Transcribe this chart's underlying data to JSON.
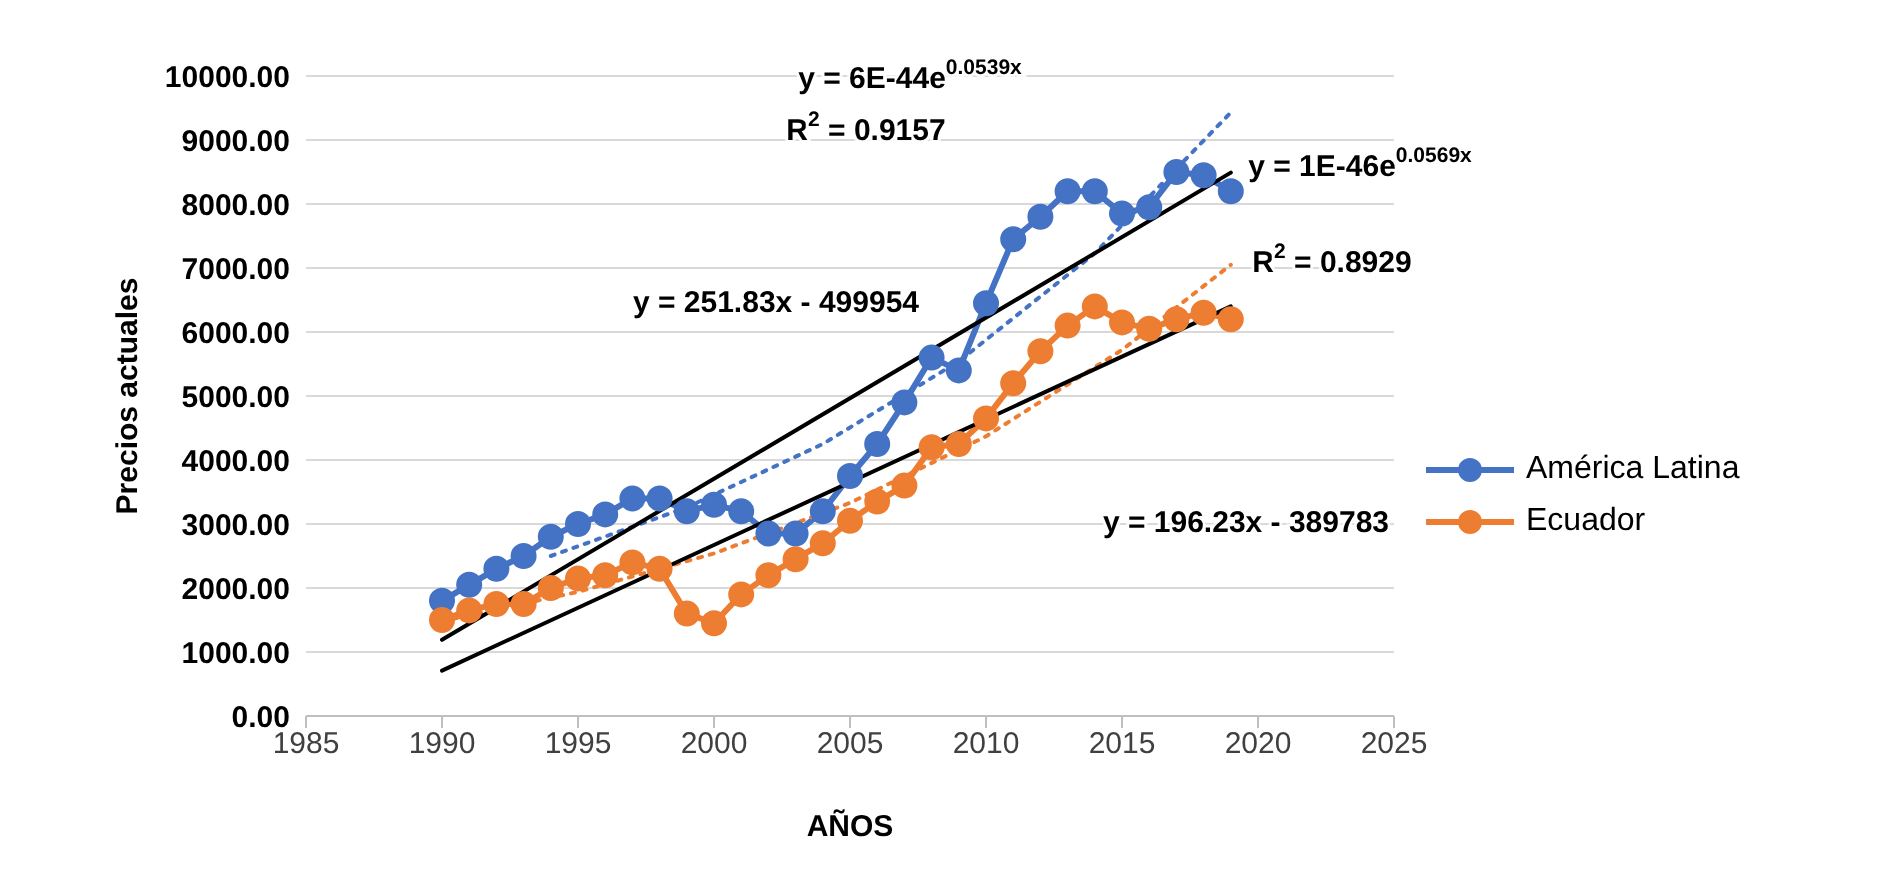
{
  "chart_data": {
    "type": "line",
    "xlabel": "AÑOS",
    "ylabel": "Precios actuales",
    "xlim": [
      1985,
      2025
    ],
    "xticks": [
      1985,
      1990,
      1995,
      2000,
      2005,
      2010,
      2015,
      2020,
      2025
    ],
    "ylim": [
      0,
      10000
    ],
    "yticks": [
      {
        "value": 0,
        "label": "0.00"
      },
      {
        "value": 1000,
        "label": "1000.00"
      },
      {
        "value": 2000,
        "label": "2000.00"
      },
      {
        "value": 3000,
        "label": "3000.00"
      },
      {
        "value": 4000,
        "label": "4000.00"
      },
      {
        "value": 5000,
        "label": "5000.00"
      },
      {
        "value": 6000,
        "label": "6000.00"
      },
      {
        "value": 7000,
        "label": "7000.00"
      },
      {
        "value": 8000,
        "label": "8000.00"
      },
      {
        "value": 9000,
        "label": "9000.00"
      },
      {
        "value": 10000,
        "label": "10000.00"
      }
    ],
    "grid": "y",
    "legend": "right",
    "marker": "circle",
    "line_style": "solid",
    "x": [
      1990,
      1991,
      1992,
      1993,
      1994,
      1995,
      1996,
      1997,
      1998,
      1999,
      2000,
      2001,
      2002,
      2003,
      2004,
      2005,
      2006,
      2007,
      2008,
      2009,
      2010,
      2011,
      2012,
      2013,
      2014,
      2015,
      2016,
      2017,
      2018,
      2019
    ],
    "series": [
      {
        "name": "América Latina",
        "color": "#4472c4",
        "values": [
          1800,
          2050,
          2300,
          2500,
          2800,
          3000,
          3150,
          3400,
          3400,
          3200,
          3300,
          3200,
          2850,
          2850,
          3200,
          3750,
          4250,
          4900,
          5600,
          5400,
          6450,
          7450,
          7800,
          8200,
          8200,
          7850,
          7950,
          8500,
          8450,
          8200
        ]
      },
      {
        "name": "Ecuador",
        "color": "#ed7d31",
        "values": [
          1500,
          1650,
          1750,
          1750,
          2000,
          2150,
          2200,
          2400,
          2300,
          1600,
          1450,
          1900,
          2200,
          2450,
          2700,
          3050,
          3350,
          3600,
          4200,
          4250,
          4650,
          5200,
          5700,
          6100,
          6400,
          6150,
          6050,
          6200,
          6300,
          6200
        ]
      },
      {
        "type": "line",
        "color": "#4472c4",
        "marker": "none",
        "line_style": "dotted",
        "x": [
          1994,
          1999,
          2004,
          2009,
          2014,
          2019
        ],
        "values": [
          2500,
          3260,
          4250,
          5540,
          7230,
          9430
        ]
      },
      {
        "type": "line",
        "color": "#ed7d31",
        "marker": "none",
        "line_style": "dotted",
        "x": [
          1990,
          1995,
          2000,
          2005,
          2010,
          2015,
          2019
        ],
        "values": [
          1480,
          1940,
          2540,
          3330,
          4370,
          5720,
          7050
        ]
      },
      {
        "type": "line",
        "color": "#000000",
        "marker": "none",
        "line_style": "solid",
        "x": [
          1990,
          2019
        ],
        "values": [
          1190,
          8490
        ]
      },
      {
        "type": "line",
        "color": "#000000",
        "marker": "none",
        "line_style": "solid",
        "x": [
          1990,
          2019
        ],
        "values": [
          710,
          6400
        ]
      }
    ],
    "annotations": [
      "y = 6E-44e$^{0.0539x}$",
      "R$^{2}$ = 0.9157",
      "y = 251.83x - 499954",
      "y = 1E-46e$^{0.0569x}$",
      "R$^{2}$ = 0.8929",
      "y = 196.23x - 389783"
    ]
  }
}
